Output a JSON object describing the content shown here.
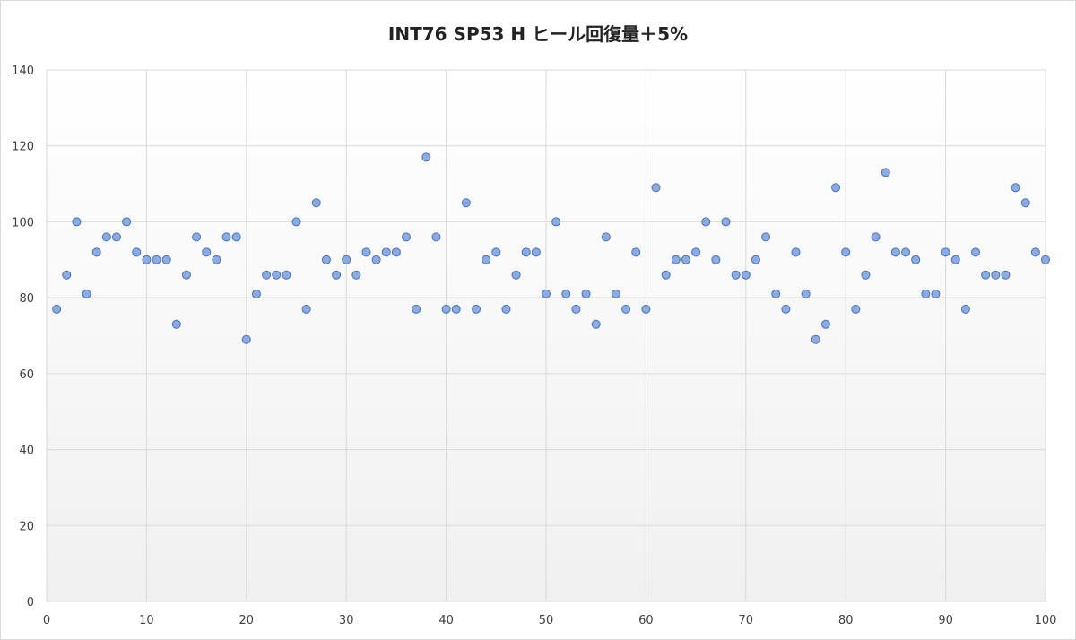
{
  "chart_data": {
    "type": "scatter",
    "title": "INT76 SP53 H ヒール回復量＋5%",
    "xlim": [
      0,
      100
    ],
    "ylim": [
      0,
      140
    ],
    "x_ticks": [
      0,
      10,
      20,
      30,
      40,
      50,
      60,
      70,
      80,
      90,
      100
    ],
    "y_ticks": [
      0,
      20,
      40,
      60,
      80,
      100,
      120,
      140
    ],
    "grid": true,
    "legend": "none",
    "series": [
      {
        "x": [
          1,
          2,
          3,
          4,
          5,
          6,
          7,
          8,
          9,
          10,
          11,
          12,
          13,
          14,
          15,
          16,
          17,
          18,
          19,
          20,
          21,
          22,
          23,
          24,
          25,
          26,
          27,
          28,
          29,
          30,
          31,
          32,
          33,
          34,
          35,
          36,
          37,
          38,
          39,
          40,
          41,
          42,
          43,
          44,
          45,
          46,
          47,
          48,
          49,
          50,
          51,
          52,
          53,
          54,
          55,
          56,
          57,
          58,
          59,
          60,
          61,
          62,
          63,
          64,
          65,
          66,
          67,
          68,
          69,
          70,
          71,
          72,
          73,
          74,
          75,
          76,
          77,
          78,
          79,
          80,
          81,
          82,
          83,
          84,
          85,
          86,
          87,
          88,
          89,
          90,
          91,
          92,
          93,
          94,
          95,
          96,
          97,
          98,
          99,
          100
        ],
        "y": [
          77,
          86,
          100,
          81,
          92,
          96,
          96,
          100,
          92,
          90,
          90,
          90,
          73,
          86,
          96,
          92,
          90,
          96,
          96,
          69,
          81,
          86,
          86,
          86,
          100,
          77,
          105,
          90,
          86,
          90,
          86,
          92,
          90,
          92,
          92,
          96,
          77,
          117,
          96,
          77,
          77,
          105,
          77,
          90,
          92,
          77,
          86,
          92,
          92,
          81,
          100,
          81,
          77,
          81,
          73,
          96,
          81,
          77,
          92,
          77,
          109,
          86,
          90,
          90,
          92,
          100,
          90,
          100,
          86,
          86,
          90,
          96,
          81,
          77,
          92,
          81,
          69,
          73,
          109,
          92,
          77,
          86,
          96,
          113,
          92,
          92,
          90,
          81,
          81,
          92,
          90,
          77,
          92,
          86,
          86,
          86,
          109,
          105,
          92,
          90
        ]
      }
    ]
  },
  "colors": {
    "marker_fill": "#8faadc",
    "marker_stroke": "#4472c4",
    "grid": "#d9d9d9",
    "plot_bg_top": "#ffffff",
    "plot_bg_bottom": "#f0f0f0"
  }
}
